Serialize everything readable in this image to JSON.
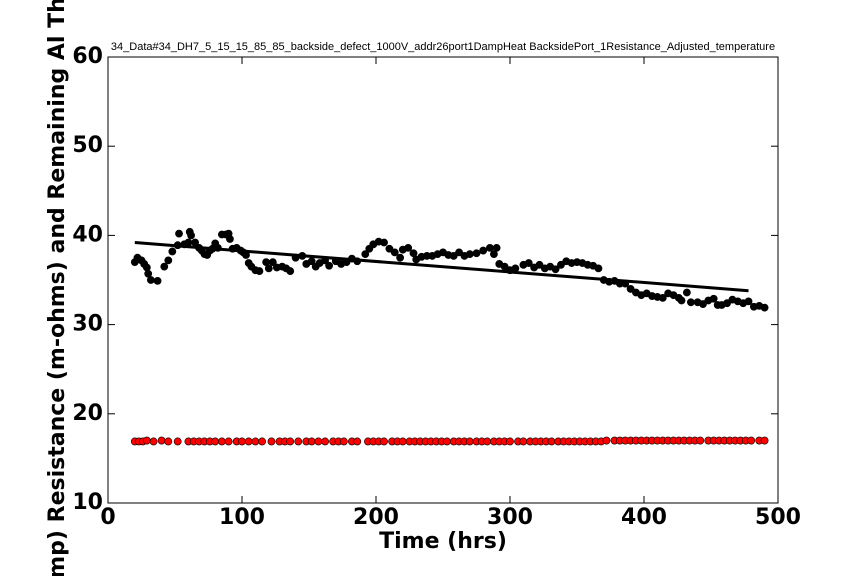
{
  "chart_data": {
    "type": "scatter",
    "title": "34_Data#34_DH7_5_15_15_85_85_backside_defect_1000V_addr26port1DampHeat BacksidePort_1Resistance_Adjusted_temperature",
    "x_label": "Time (hrs)",
    "y_label": "mp) Resistance (m-ohms) and Remaining Al Th",
    "xlim": [
      0,
      500
    ],
    "xticks": [
      0,
      100,
      200,
      300,
      400,
      500
    ],
    "ylim": [
      10,
      60
    ],
    "yticks": [
      10,
      20,
      30,
      40,
      50,
      60
    ],
    "series": [
      {
        "color": "#000000",
        "style": "markers",
        "x": [
          20,
          22,
          25,
          27,
          29,
          30,
          32,
          37,
          42,
          45,
          48,
          52,
          53,
          57,
          60,
          61,
          62,
          65,
          68,
          70,
          72,
          74,
          76,
          78,
          80,
          82,
          85,
          88,
          90,
          91,
          93,
          96,
          99,
          101,
          103,
          105,
          107,
          110,
          113,
          118,
          120,
          123,
          126,
          130,
          133,
          136,
          140,
          145,
          148,
          152,
          155,
          158,
          162,
          165,
          170,
          174,
          178,
          182,
          186,
          192,
          195,
          198,
          202,
          206,
          210,
          214,
          218,
          220,
          224,
          228,
          230,
          234,
          238,
          242,
          246,
          250,
          254,
          258,
          262,
          266,
          270,
          275,
          280,
          285,
          288,
          290,
          292,
          296,
          300,
          304,
          310,
          314,
          318,
          322,
          326,
          330,
          334,
          338,
          342,
          346,
          350,
          354,
          358,
          362,
          366,
          370,
          374,
          378,
          382,
          386,
          390,
          394,
          398,
          402,
          406,
          410,
          414,
          418,
          422,
          426,
          428,
          432,
          435,
          440,
          444,
          448,
          452,
          455,
          458,
          462,
          466,
          470,
          474,
          478,
          482,
          486,
          490
        ],
        "values": [
          37.0,
          37.5,
          37.2,
          36.8,
          36.4,
          35.7,
          35.0,
          34.9,
          36.5,
          37.2,
          38.2,
          38.9,
          40.2,
          39.0,
          39.2,
          40.4,
          40.0,
          39.2,
          38.6,
          38.3,
          37.9,
          37.8,
          38.3,
          38.5,
          39.1,
          38.6,
          40.1,
          40.1,
          40.2,
          39.6,
          38.5,
          38.6,
          38.3,
          38.1,
          37.8,
          36.9,
          36.5,
          36.1,
          36.0,
          37.0,
          36.3,
          37.0,
          36.4,
          36.5,
          36.3,
          36.0,
          37.5,
          37.7,
          36.8,
          37.1,
          36.5,
          36.9,
          37.2,
          36.6,
          37.1,
          36.8,
          37.0,
          37.4,
          37.1,
          37.9,
          38.5,
          39.0,
          39.3,
          39.2,
          38.5,
          38.1,
          37.5,
          38.4,
          38.6,
          38.0,
          37.3,
          37.6,
          37.7,
          37.7,
          37.9,
          38.1,
          37.8,
          37.7,
          38.1,
          37.7,
          37.9,
          38.0,
          38.3,
          38.6,
          37.9,
          38.6,
          36.8,
          36.5,
          36.1,
          36.3,
          36.7,
          36.9,
          36.4,
          36.7,
          36.3,
          36.5,
          36.2,
          36.7,
          37.1,
          36.9,
          37.0,
          36.9,
          36.7,
          36.6,
          36.3,
          35.0,
          34.8,
          34.9,
          34.6,
          34.6,
          34.0,
          33.6,
          33.3,
          33.5,
          33.2,
          33.1,
          33.0,
          33.5,
          33.3,
          33.0,
          32.7,
          33.6,
          32.5,
          32.5,
          32.3,
          32.7,
          32.9,
          32.2,
          32.2,
          32.4,
          32.8,
          32.6,
          32.4,
          32.6,
          32.0,
          32.1,
          31.9
        ]
      },
      {
        "color": "#ff0000",
        "style": "markers",
        "x": [
          20,
          23,
          26,
          29,
          34,
          40,
          45,
          52,
          60,
          64,
          68,
          72,
          76,
          80,
          85,
          90,
          96,
          100,
          105,
          110,
          115,
          122,
          128,
          132,
          136,
          142,
          148,
          152,
          157,
          162,
          168,
          172,
          176,
          182,
          186,
          194,
          198,
          202,
          206,
          212,
          216,
          220,
          225,
          229,
          233,
          237,
          241,
          245,
          249,
          253,
          258,
          262,
          266,
          270,
          275,
          279,
          283,
          288,
          292,
          296,
          300,
          306,
          310,
          315,
          319,
          323,
          327,
          331,
          336,
          340,
          344,
          348,
          352,
          356,
          360,
          364,
          368,
          372,
          378,
          382,
          386,
          390,
          394,
          398,
          402,
          406,
          410,
          414,
          418,
          422,
          426,
          430,
          434,
          438,
          442,
          448,
          452,
          456,
          460,
          464,
          468,
          472,
          476,
          480,
          486,
          490
        ],
        "values": [
          16.9,
          16.9,
          16.9,
          17.0,
          16.9,
          17.0,
          16.9,
          16.9,
          16.9,
          16.9,
          16.9,
          16.9,
          16.9,
          16.9,
          16.9,
          16.9,
          16.9,
          16.9,
          16.9,
          16.9,
          16.9,
          16.9,
          16.9,
          16.9,
          16.9,
          16.9,
          16.9,
          16.9,
          16.9,
          16.9,
          16.9,
          16.9,
          16.9,
          16.9,
          16.9,
          16.9,
          16.9,
          16.9,
          16.9,
          16.9,
          16.9,
          16.9,
          16.9,
          16.9,
          16.9,
          16.9,
          16.9,
          16.9,
          16.9,
          16.9,
          16.9,
          16.9,
          16.9,
          16.9,
          16.9,
          16.9,
          16.9,
          16.9,
          16.9,
          16.9,
          16.9,
          16.9,
          16.9,
          16.9,
          16.9,
          16.9,
          16.9,
          16.9,
          16.9,
          16.9,
          16.9,
          16.9,
          16.9,
          16.9,
          16.9,
          16.9,
          16.9,
          17.0,
          17.0,
          17.0,
          17.0,
          17.0,
          17.0,
          17.0,
          17.0,
          17.0,
          17.0,
          17.0,
          17.0,
          17.0,
          17.0,
          17.0,
          17.0,
          17.0,
          17.0,
          17.0,
          17.0,
          17.0,
          17.0,
          17.0,
          17.0,
          17.0,
          17.0,
          17.0,
          17.0,
          17.0
        ]
      },
      {
        "color": "#000000",
        "style": "line",
        "x": [
          20,
          478
        ],
        "values": [
          39.2,
          33.8
        ]
      }
    ]
  }
}
